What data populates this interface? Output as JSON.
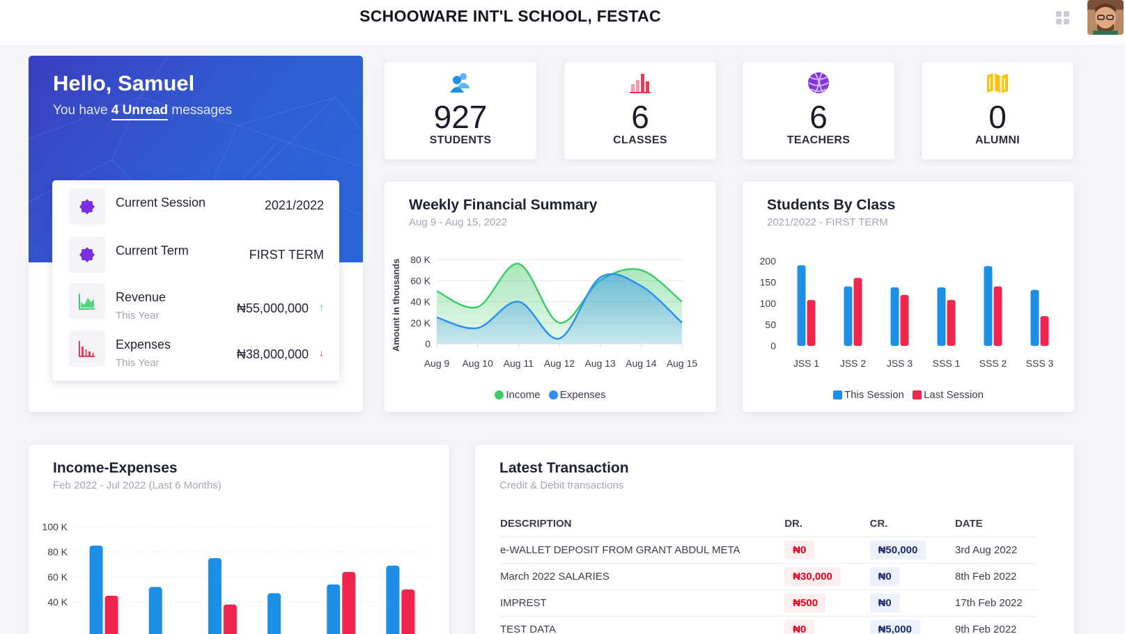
{
  "header": {
    "school_name": "SCHOOWARE INT'L SCHOOL, FESTAC",
    "apps_icon": "grid-icon",
    "avatar_icon": "user-avatar"
  },
  "welcome": {
    "greeting": "Hello, Samuel",
    "message_prefix": "You have",
    "unread_link": "4 Unread",
    "message_suffix": "messages",
    "info": [
      {
        "label": "Current Session",
        "sub": "",
        "value": "2021/2022",
        "icon": "badge-icon"
      },
      {
        "label": "Current Term",
        "sub": "",
        "value": "FIRST TERM",
        "icon": "badge-icon"
      },
      {
        "label": "Revenue",
        "sub": "This Year",
        "value": "₦55,000,000",
        "trend": "↑",
        "icon": "area-chart-icon"
      },
      {
        "label": "Expenses",
        "sub": "This Year",
        "value": "₦38,000,000",
        "trend": "↓",
        "icon": "bar-chart-icon"
      }
    ]
  },
  "stats": [
    {
      "value": "927",
      "label": "STUDENTS",
      "icon": "users-icon",
      "color": "#1e8fe6"
    },
    {
      "value": "6",
      "label": "CLASSES",
      "icon": "bar-chart-icon",
      "color": "#ee3a5a"
    },
    {
      "value": "6",
      "label": "TEACHERS",
      "icon": "ball-icon",
      "color": "#7d3ad8"
    },
    {
      "value": "0",
      "label": "ALUMNI",
      "icon": "map-icon",
      "color": "#f3c417"
    }
  ],
  "colors": {
    "income": "#3ecb6a",
    "expenses": "#2b90ef",
    "this_session": "#1e8fe6",
    "last_session": "#f0264e",
    "hero": "#3441c3"
  },
  "chart_data": [
    {
      "type": "area",
      "title": "Weekly Financial Summary",
      "subtitle": "Aug 9 - Aug 15, 2022",
      "ylabel": "Amount in thousands",
      "categories": [
        "Aug 9",
        "Aug 10",
        "Aug 11",
        "Aug 12",
        "Aug 13",
        "Aug 14",
        "Aug 15"
      ],
      "yticks": [
        "0",
        "20 K",
        "40 K",
        "60 K",
        "80 K"
      ],
      "ylim": [
        0,
        80
      ],
      "series": [
        {
          "name": "Income",
          "values": [
            50,
            35,
            76,
            20,
            60,
            70,
            40
          ]
        },
        {
          "name": "Expenses",
          "values": [
            25,
            15,
            40,
            5,
            63,
            55,
            20
          ]
        }
      ]
    },
    {
      "type": "bar",
      "title": "Students By Class",
      "subtitle": "2021/2022 - FIRST TERM",
      "categories": [
        "JSS 1",
        "JSS 2",
        "JSS 3",
        "SSS 1",
        "SSS 2",
        "SSS 3"
      ],
      "yticks": [
        "0",
        "50",
        "100",
        "150",
        "200"
      ],
      "ylim": [
        0,
        200
      ],
      "series": [
        {
          "name": "This Session",
          "values": [
            190,
            140,
            138,
            138,
            188,
            132
          ]
        },
        {
          "name": "Last Session",
          "values": [
            108,
            160,
            120,
            108,
            140,
            70
          ]
        }
      ]
    },
    {
      "type": "bar",
      "title": "Income-Expenses",
      "subtitle": "Feb 2022 - Jul 2022 (Last 6 Months)",
      "yticks": [
        "40 K",
        "60 K",
        "80 K",
        "100 K"
      ],
      "ylim": [
        0,
        100
      ],
      "series": [
        {
          "values": [
            85,
            52,
            75,
            47,
            54,
            69
          ]
        },
        {
          "values": [
            45,
            0,
            38,
            0,
            64,
            50
          ]
        }
      ]
    }
  ],
  "transactions": {
    "title": "Latest Transaction",
    "subtitle": "Credit & Debit transactions",
    "columns": [
      "DESCRIPTION",
      "DR.",
      "CR.",
      "DATE"
    ],
    "rows": [
      {
        "description": "e-WALLET DEPOSIT FROM GRANT ABDUL META",
        "dr": "₦0",
        "cr": "₦50,000",
        "date": "3rd Aug 2022"
      },
      {
        "description": "March 2022 SALARIES",
        "dr": "₦30,000",
        "cr": "₦0",
        "date": "8th Feb 2022"
      },
      {
        "description": "IMPREST",
        "dr": "₦500",
        "cr": "₦0",
        "date": "17th Feb 2022"
      },
      {
        "description": "TEST DATA",
        "dr": "₦0",
        "cr": "₦5,000",
        "date": "9th Feb 2022"
      }
    ]
  }
}
